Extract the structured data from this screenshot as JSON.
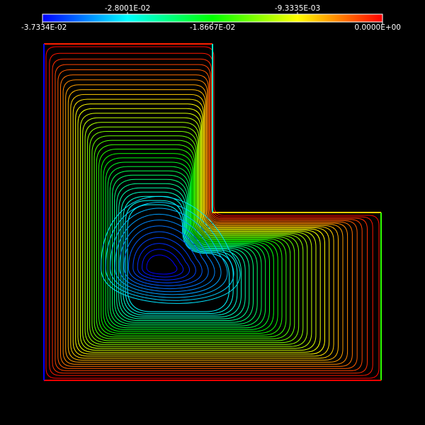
{
  "colorbar": {
    "min_label": "-3.7334E-02",
    "q1_label": "-2.8001E-02",
    "mid_label": "-1.8667E-02",
    "q3_label": "-9.3335E-03",
    "max_label": "0.0000E+00",
    "min": -0.037334,
    "max": 0.0,
    "colors": [
      "#0000ff",
      "#00ffff",
      "#00ff00",
      "#ffff00",
      "#ff0000"
    ]
  },
  "plot": {
    "background": "#000000",
    "contour_count": 46
  }
}
